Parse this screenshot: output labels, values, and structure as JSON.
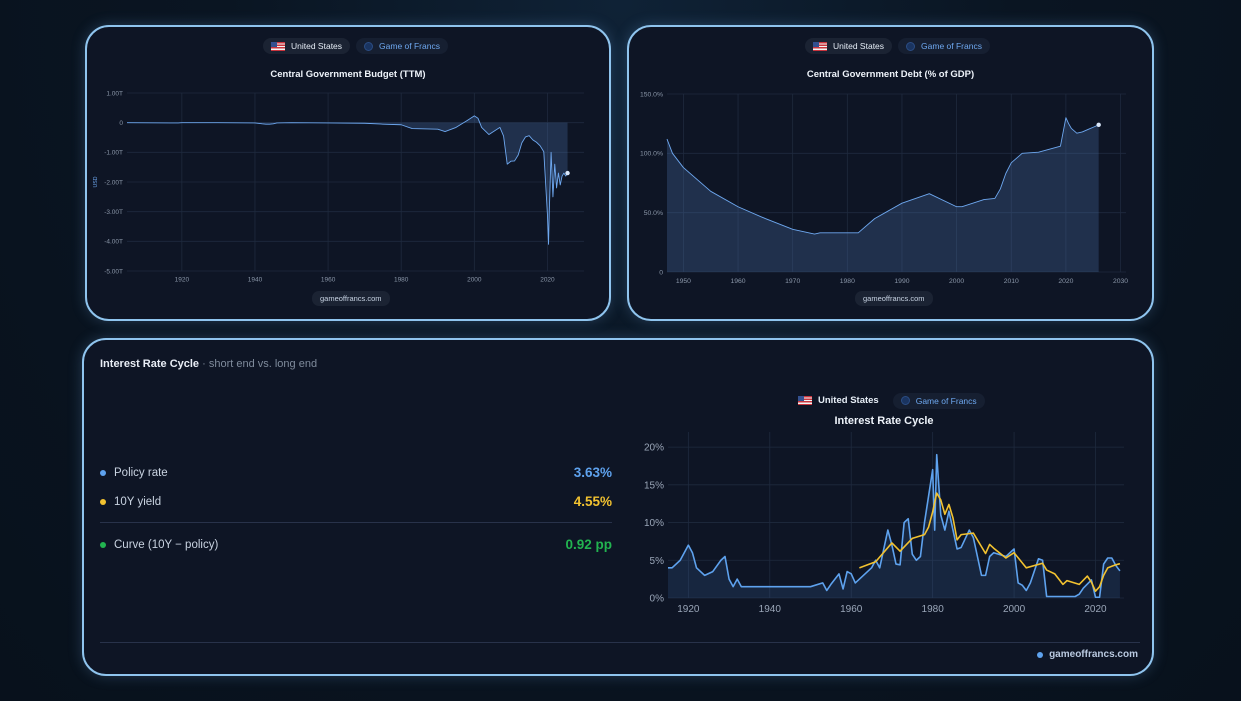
{
  "colors": {
    "card_border": "#8fc4ee",
    "budget_line": "#6ea8f0",
    "policy_rate": "#5ea2ee",
    "yield_10y": "#f2c230",
    "curve": "#22b450"
  },
  "badges": {
    "country": "United States",
    "brand": "Game of Francs"
  },
  "budget_card": {
    "url": "gameoffrancs.com"
  },
  "debt_card": {
    "url": "gameoffrancs.com"
  },
  "rates_card": {
    "title": "Interest Rate Cycle",
    "subtitle": "· short end vs. long end",
    "metrics": [
      {
        "label": "Policy rate",
        "value": "3.63%"
      },
      {
        "label": "10Y yield",
        "value": "4.55%"
      },
      {
        "label": "Curve (10Y − policy)",
        "value": "0.92 pp"
      }
    ],
    "footer_url": "gameoffrancs.com"
  },
  "chart_data": [
    {
      "type": "area",
      "title": "Central Government Budget (TTM)",
      "ylabel": "USD",
      "xlim": [
        1905,
        2030
      ],
      "ylim": [
        -5.0,
        1.0
      ],
      "x_ticks": [
        1920,
        1940,
        1960,
        1980,
        2000,
        2020
      ],
      "y_ticks": [
        {
          "v": 1.0,
          "label": "1.00T"
        },
        {
          "v": 0,
          "label": "0"
        },
        {
          "v": -1.0,
          "label": "-1.00T"
        },
        {
          "v": -2.0,
          "label": "-2.00T"
        },
        {
          "v": -3.0,
          "label": "-3.00T"
        },
        {
          "v": -4.0,
          "label": "-4.00T"
        },
        {
          "v": -5.0,
          "label": "-5.00T"
        }
      ],
      "grid": true,
      "series": [
        {
          "x": [
            1901,
            1917,
            1918,
            1919,
            1920,
            1930,
            1940,
            1942,
            1943,
            1944,
            1945,
            1946,
            1950,
            1960,
            1970,
            1975,
            1980,
            1983,
            1990,
            1992,
            1995,
            1998,
            2000,
            2001,
            2002,
            2004,
            2007,
            2008,
            2009,
            2010,
            2011,
            2012,
            2013,
            2014,
            2015,
            2016,
            2017,
            2018,
            2019,
            2020,
            2020.3,
            2020.5,
            2021,
            2021.5,
            2022,
            2022.5,
            2023,
            2023.5,
            2024,
            2024.5,
            2025,
            2025.5
          ],
          "y": [
            0,
            -0.01,
            -0.01,
            -0.01,
            0,
            0,
            -0.01,
            -0.04,
            -0.05,
            -0.05,
            -0.04,
            -0.01,
            0,
            -0.01,
            -0.02,
            -0.05,
            -0.07,
            -0.2,
            -0.22,
            -0.3,
            -0.16,
            0.07,
            0.23,
            0.15,
            -0.16,
            -0.4,
            -0.16,
            -0.45,
            -1.4,
            -1.3,
            -1.29,
            -1.09,
            -0.68,
            -0.48,
            -0.44,
            -0.58,
            -0.66,
            -0.78,
            -0.98,
            -3.1,
            -4.1,
            -3.0,
            -1.0,
            -2.5,
            -1.4,
            -2.2,
            -1.7,
            -2.1,
            -1.8,
            -1.7,
            -1.8,
            -1.7
          ]
        }
      ]
    },
    {
      "type": "area",
      "title": "Central Government Debt (% of GDP)",
      "xlim": [
        1947,
        2031
      ],
      "ylim": [
        0,
        150
      ],
      "x_ticks": [
        1950,
        1960,
        1970,
        1980,
        1990,
        2000,
        2010,
        2020,
        2030
      ],
      "y_ticks": [
        {
          "v": 0,
          "label": "0"
        },
        {
          "v": 50,
          "label": "50.0%"
        },
        {
          "v": 100,
          "label": "100.0%"
        },
        {
          "v": 150,
          "label": "150.0%"
        }
      ],
      "grid": true,
      "series": [
        {
          "x": [
            1947,
            1948,
            1950,
            1955,
            1960,
            1965,
            1970,
            1974,
            1975,
            1980,
            1982,
            1985,
            1990,
            1995,
            2000,
            2001,
            2005,
            2007,
            2008,
            2009,
            2010,
            2012,
            2015,
            2019,
            2020,
            2020.5,
            2021,
            2022,
            2023,
            2024,
            2025,
            2026
          ],
          "y": [
            112,
            100,
            88,
            68,
            55,
            45,
            36,
            32,
            33,
            33,
            33,
            45,
            58,
            66,
            55,
            55,
            61,
            62,
            70,
            83,
            92,
            100,
            101,
            106,
            130,
            125,
            121,
            117,
            118,
            120,
            122,
            124
          ]
        }
      ]
    },
    {
      "type": "line",
      "title": "Interest Rate Cycle",
      "xlim": [
        1915,
        2027
      ],
      "ylim": [
        0,
        22
      ],
      "x_ticks": [
        1920,
        1940,
        1960,
        1980,
        2000,
        2020
      ],
      "y_ticks": [
        {
          "v": 0,
          "label": "0%"
        },
        {
          "v": 5,
          "label": "5%"
        },
        {
          "v": 10,
          "label": "10%"
        },
        {
          "v": 15,
          "label": "15%"
        },
        {
          "v": 20,
          "label": "20%"
        }
      ],
      "grid": true,
      "series": [
        {
          "name": "Policy rate",
          "x": [
            1914,
            1916,
            1918,
            1920,
            1921,
            1922,
            1924,
            1926,
            1928,
            1929,
            1930,
            1931,
            1932,
            1933,
            1934,
            1940,
            1945,
            1948,
            1950,
            1953,
            1954,
            1955,
            1957,
            1958,
            1959,
            1960,
            1961,
            1965,
            1966,
            1967,
            1969,
            1970,
            1971,
            1972,
            1973,
            1974,
            1975,
            1976,
            1977,
            1978,
            1979,
            1980,
            1980.5,
            1981,
            1982,
            1983,
            1984,
            1986,
            1987,
            1989,
            1990,
            1992,
            1993,
            1994,
            1995,
            1998,
            2000,
            2001,
            2002,
            2003,
            2004,
            2006,
            2007,
            2008,
            2009,
            2015,
            2016,
            2017,
            2019,
            2020,
            2021,
            2022,
            2023,
            2024,
            2025,
            2026
          ],
          "y": [
            4,
            4,
            5,
            7,
            6,
            4,
            3,
            3.5,
            5,
            5.5,
            2.5,
            1.5,
            2.5,
            1.5,
            1.5,
            1.5,
            1.5,
            1.5,
            1.5,
            2,
            1,
            1.8,
            3.2,
            1.2,
            3.5,
            3.2,
            2,
            4,
            5,
            4,
            9,
            7,
            4.5,
            4.4,
            10,
            10.5,
            5.8,
            5,
            5.5,
            10,
            13.5,
            17,
            9,
            19,
            11,
            9,
            11.5,
            6.5,
            6.7,
            9,
            8,
            3,
            3,
            5.5,
            6,
            5.5,
            6.5,
            2,
            1.7,
            1,
            2,
            5.2,
            5,
            0.2,
            0.2,
            0.2,
            0.5,
            1.3,
            2.4,
            0.1,
            0.1,
            4.5,
            5.3,
            5.3,
            4.3,
            3.6
          ]
        },
        {
          "name": "10Y yield",
          "x": [
            1962,
            1966,
            1970,
            1972,
            1975,
            1978,
            1979,
            1980,
            1981,
            1982,
            1983,
            1984,
            1985,
            1986,
            1987,
            1990,
            1993,
            1994,
            1995,
            1998,
            2000,
            2003,
            2007,
            2008,
            2010,
            2012,
            2013,
            2016,
            2018,
            2019,
            2020,
            2021,
            2022,
            2023,
            2024,
            2025,
            2026
          ],
          "y": [
            4,
            4.8,
            7.3,
            6.2,
            7.9,
            8.4,
            9.4,
            11.4,
            13.9,
            13,
            11.1,
            12.4,
            10.6,
            7.7,
            8.4,
            8.6,
            5.9,
            7.1,
            6.6,
            5.3,
            6,
            4,
            4.6,
            3.7,
            3.2,
            1.8,
            2.3,
            1.8,
            2.9,
            2.1,
            0.9,
            1.5,
            3,
            4,
            4.2,
            4.4,
            4.55
          ]
        }
      ]
    }
  ]
}
